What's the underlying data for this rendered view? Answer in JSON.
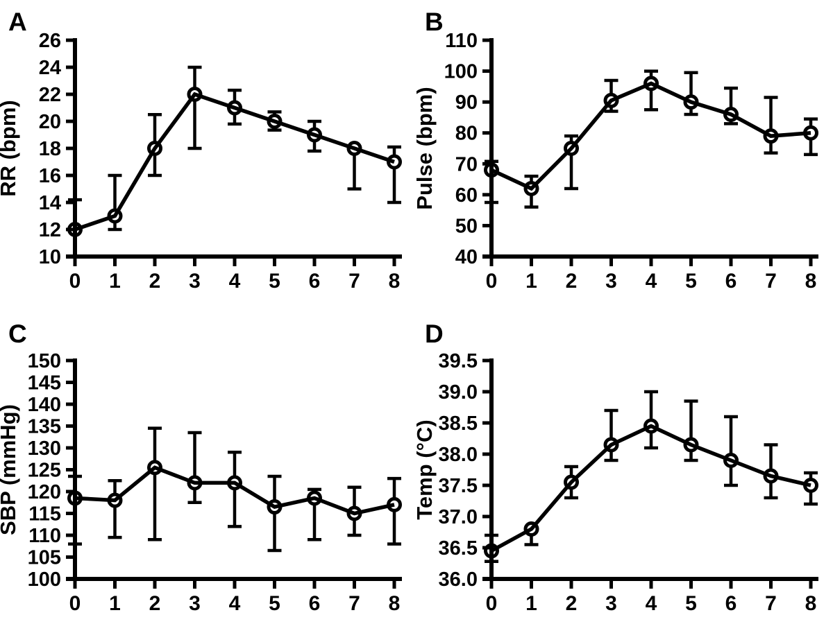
{
  "figure": {
    "background": "#ffffff",
    "ink": "#000000",
    "description": "Four-panel vital signs line figure with open-circle markers and error bars",
    "panel_letters": [
      "A",
      "B",
      "C",
      "D"
    ]
  },
  "chart_data": [
    {
      "type": "line",
      "panel_label": "A",
      "title": "",
      "xlabel": "",
      "ylabel": "RR (bpm)",
      "x": [
        0,
        1,
        2,
        3,
        4,
        5,
        6,
        7,
        8
      ],
      "xlim": [
        0,
        8
      ],
      "ylim": [
        10,
        26
      ],
      "ytick_step": 2,
      "ytick_decimals": 0,
      "grid": false,
      "legend": false,
      "marker": "open-circle",
      "line_color": "#000000",
      "series": [
        {
          "name": "RR",
          "values": [
            12,
            13,
            18,
            22,
            21,
            20,
            19,
            18,
            17
          ],
          "err_cap_upper": [
            14.2,
            16,
            20.5,
            24,
            22.3,
            20.7,
            20,
            18,
            18.1
          ],
          "err_cap_lower": [
            12,
            12,
            16,
            18,
            19.8,
            19.35,
            17.8,
            15,
            14
          ]
        }
      ]
    },
    {
      "type": "line",
      "panel_label": "B",
      "title": "",
      "xlabel": "",
      "ylabel": "Pulse (bpm)",
      "x": [
        0,
        1,
        2,
        3,
        4,
        5,
        6,
        7,
        8
      ],
      "xlim": [
        0,
        8
      ],
      "ylim": [
        40,
        110
      ],
      "ytick_step": 10,
      "ytick_decimals": 0,
      "grid": false,
      "legend": false,
      "marker": "open-circle",
      "line_color": "#000000",
      "series": [
        {
          "name": "Pulse",
          "values": [
            68,
            62,
            75,
            90.5,
            96,
            90,
            86,
            79,
            80
          ],
          "err_cap_upper": [
            70.8,
            66,
            79,
            97,
            100,
            99.5,
            94.5,
            91.5,
            84.5
          ],
          "err_cap_lower": [
            57.5,
            56,
            62,
            87,
            87.5,
            86,
            83,
            73.5,
            73
          ]
        }
      ]
    },
    {
      "type": "line",
      "panel_label": "C",
      "title": "",
      "xlabel": "",
      "ylabel": "SBP (mmHg)",
      "x": [
        0,
        1,
        2,
        3,
        4,
        5,
        6,
        7,
        8
      ],
      "xlim": [
        0,
        8
      ],
      "ylim": [
        100,
        150
      ],
      "ytick_step": 5,
      "ytick_decimals": 0,
      "grid": false,
      "legend": false,
      "marker": "open-circle",
      "line_color": "#000000",
      "series": [
        {
          "name": "SBP",
          "values": [
            118.5,
            118,
            125.5,
            122,
            122,
            116.5,
            118.5,
            115,
            117
          ],
          "err_cap_upper": [
            123.5,
            122.5,
            134.5,
            133.5,
            129,
            123.5,
            120.5,
            121,
            123
          ],
          "err_cap_lower": [
            108,
            109.5,
            109,
            117.5,
            112,
            106.5,
            109,
            110,
            108
          ]
        }
      ]
    },
    {
      "type": "line",
      "panel_label": "D",
      "title": "",
      "xlabel": "",
      "ylabel": "Temp (°C)",
      "x": [
        0,
        1,
        2,
        3,
        4,
        5,
        6,
        7,
        8
      ],
      "xlim": [
        0,
        8
      ],
      "ylim": [
        36.0,
        39.5
      ],
      "ytick_step": 0.5,
      "ytick_decimals": 1,
      "grid": false,
      "legend": false,
      "marker": "open-circle",
      "line_color": "#000000",
      "series": [
        {
          "name": "Temp",
          "values": [
            36.45,
            36.8,
            37.55,
            38.15,
            38.45,
            38.15,
            37.9,
            37.65,
            37.5
          ],
          "err_cap_upper": [
            36.7,
            36.8,
            37.8,
            38.7,
            39.0,
            38.85,
            38.6,
            38.15,
            37.7
          ],
          "err_cap_lower": [
            36.28,
            36.55,
            37.3,
            37.9,
            38.1,
            37.9,
            37.5,
            37.3,
            37.2
          ]
        }
      ]
    }
  ]
}
